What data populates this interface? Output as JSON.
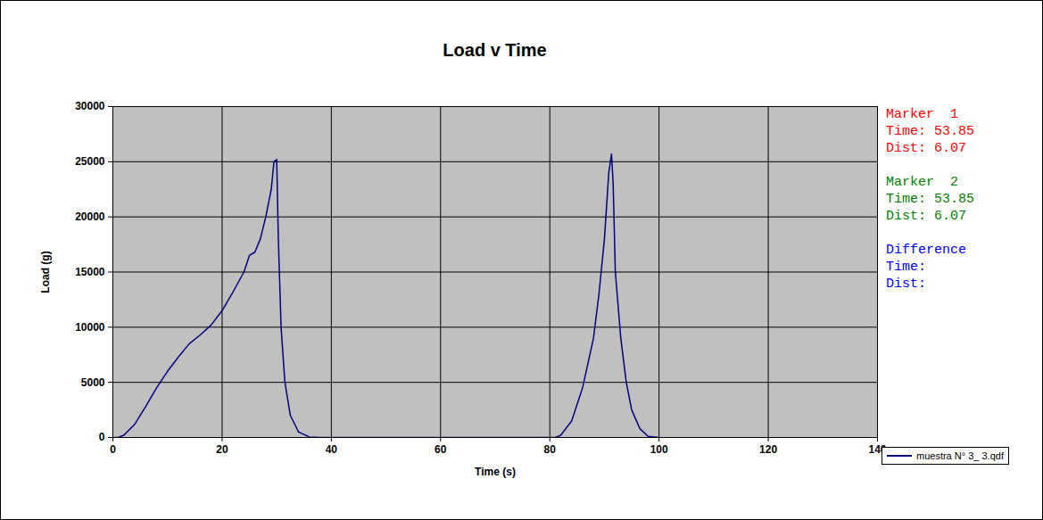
{
  "chart_data": {
    "type": "line",
    "title": "Load v Time",
    "x_label": "Time (s)",
    "y_label": "Load (g)",
    "x": [
      0,
      1,
      2,
      4,
      6,
      8,
      10,
      12,
      14,
      16,
      18,
      20,
      22,
      24,
      25,
      26,
      27,
      28,
      29,
      29.5,
      30,
      30.3,
      30.8,
      31.5,
      32.5,
      34,
      36,
      38,
      60,
      81,
      82,
      84,
      86,
      88,
      89,
      90,
      90.8,
      91.3,
      91.6,
      92,
      93,
      94,
      95,
      96.5,
      98,
      100
    ],
    "series": [
      {
        "name": "muestra N° 3_ 3.qdf",
        "color": "#000080",
        "values": [
          0,
          0,
          200,
          1200,
          2800,
          4500,
          6000,
          7300,
          8500,
          9300,
          10200,
          11500,
          13200,
          15000,
          16500,
          16800,
          18000,
          20000,
          22500,
          25000,
          25200,
          18000,
          10000,
          5000,
          2000,
          500,
          50,
          0,
          0,
          0,
          200,
          1500,
          4500,
          9000,
          13000,
          18000,
          24000,
          25700,
          23000,
          15000,
          9000,
          5000,
          2500,
          800,
          100,
          0
        ]
      }
    ],
    "xlim": [
      0,
      140
    ],
    "ylim": [
      0,
      30000
    ],
    "xticks": [
      0,
      20,
      40,
      60,
      80,
      100,
      120,
      140
    ],
    "yticks": [
      0,
      5000,
      10000,
      15000,
      20000,
      25000,
      30000
    ],
    "grid": true,
    "legend": "right",
    "markers": [
      {
        "name": "Marker  1",
        "color": "#ff0000",
        "lines": [
          "Time: 53.85",
          "Dist: 6.07"
        ]
      },
      {
        "name": "Marker  2",
        "color": "#008000",
        "lines": [
          "Time: 53.85",
          "Dist: 6.07"
        ]
      },
      {
        "name": "Difference",
        "color": "#0000ff",
        "lines": [
          "Time:",
          "Dist:"
        ]
      }
    ]
  }
}
